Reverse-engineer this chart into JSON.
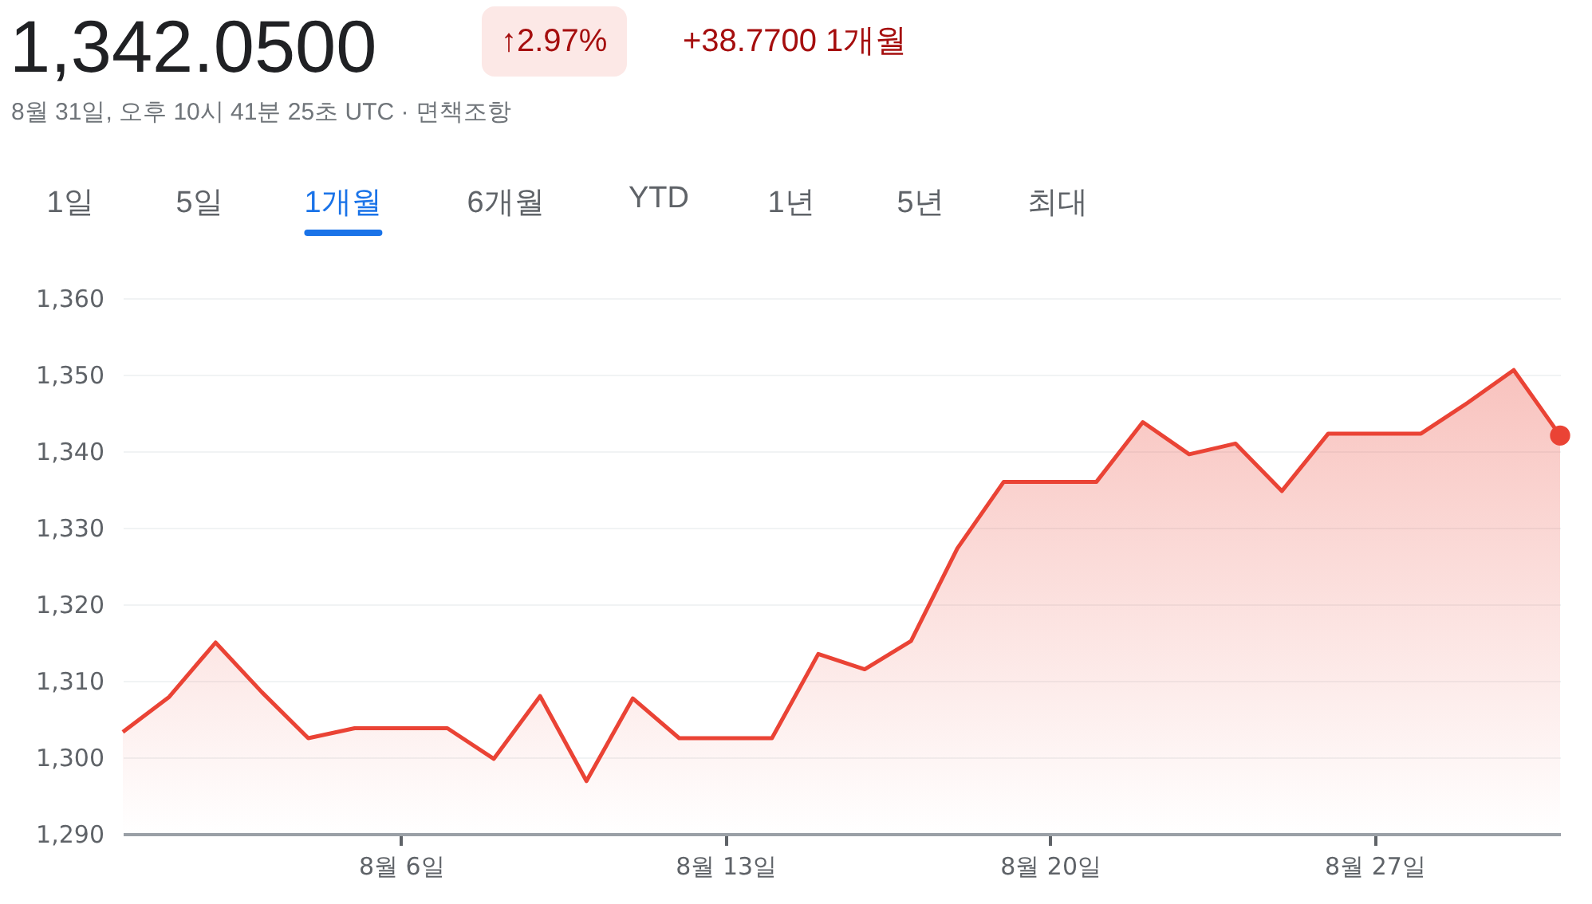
{
  "chart_data": {
    "type": "area",
    "title": "1,342.0500",
    "subtitle": "8월 31일, 오후 10시 41분 25초 UTC · 면책조항",
    "annotations": [
      "↑2.97%",
      "+38.7700 1개월",
      "1일",
      "5일",
      "1개월",
      "6개월",
      "YTD",
      "1년",
      "5년",
      "최대"
    ],
    "x": [
      "--07-31",
      "--08-01",
      "--08-02",
      "--08-03",
      "--08-04",
      "--08-05",
      "--08-06",
      "--08-07",
      "--08-08",
      "--08-09",
      "--08-10",
      "--08-11",
      "--08-12",
      "--08-13",
      "--08-14",
      "--08-15",
      "--08-16",
      "--08-17",
      "--08-18",
      "--08-19",
      "--08-20",
      "--08-21",
      "--08-22",
      "--08-23",
      "--08-24",
      "--08-25",
      "--08-26",
      "--08-27",
      "--08-28",
      "--08-29",
      "--08-30",
      "--08-31"
    ],
    "series": [
      {
        "color": "#ea4335",
        "values": [
          1303.3,
          1307.9,
          1315,
          1308.5,
          1302.5,
          1303.8,
          1303.8,
          1303.8,
          1299.8,
          1308,
          1296.9,
          1307.7,
          1302.5,
          1302.5,
          1302.5,
          1313.5,
          1311.5,
          1315.2,
          1327.3,
          1336,
          1336,
          1336,
          1343.8,
          1339.6,
          1341,
          1334.8,
          1342.3,
          1342.3,
          1342.3,
          1346.3,
          1350.6,
          1342.05
        ]
      }
    ],
    "xlim": [
      "--07-31",
      "--08-31"
    ],
    "xticks": [
      {
        "value": "--08-06",
        "label": "8월 6일"
      },
      {
        "value": "--08-13",
        "label": "8월 13일"
      },
      {
        "value": "--08-20",
        "label": "8월 20일"
      },
      {
        "value": "--08-27",
        "label": "8월 27일"
      }
    ],
    "ylim": [
      1290,
      1360
    ],
    "yticks": [
      {
        "value": 1290,
        "label": "1,290"
      },
      {
        "value": 1300,
        "label": "1,300"
      },
      {
        "value": 1310,
        "label": "1,310"
      },
      {
        "value": 1320,
        "label": "1,320"
      },
      {
        "value": 1330,
        "label": "1,330"
      },
      {
        "value": 1340,
        "label": "1,340"
      },
      {
        "value": 1350,
        "label": "1,350"
      },
      {
        "value": 1360,
        "label": "1,360"
      }
    ],
    "grid": "y"
  }
}
